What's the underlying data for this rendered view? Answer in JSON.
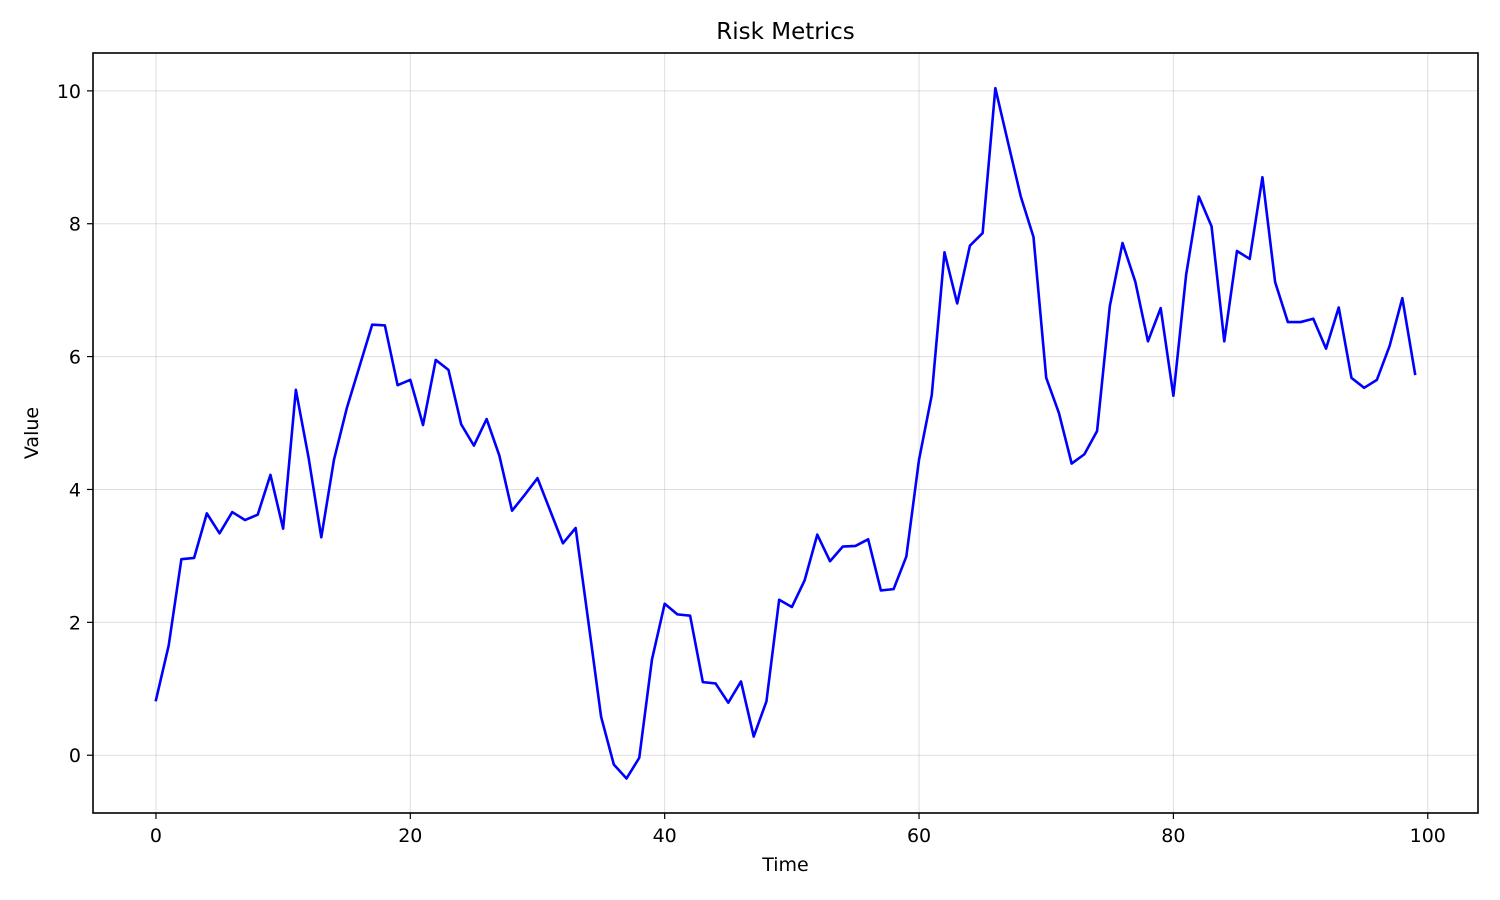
{
  "chart_data": {
    "type": "line",
    "title": "Risk Metrics",
    "xlabel": "Time",
    "ylabel": "Value",
    "xlim": [
      -4.95,
      103.95
    ],
    "ylim": [
      -0.87,
      10.57
    ],
    "xticks": [
      0,
      20,
      40,
      60,
      80,
      100
    ],
    "yticks": [
      0,
      2,
      4,
      6,
      8,
      10
    ],
    "grid": true,
    "legend": "none",
    "line_color": "#0000ff",
    "series": [
      {
        "x": [
          0,
          1,
          2,
          3,
          4,
          5,
          6,
          7,
          8,
          9,
          10,
          11,
          12,
          13,
          14,
          15,
          16,
          17,
          18,
          19,
          20,
          21,
          22,
          23,
          24,
          25,
          26,
          27,
          28,
          29,
          30,
          31,
          32,
          33,
          34,
          35,
          36,
          37,
          38,
          39,
          40,
          41,
          42,
          43,
          44,
          45,
          46,
          47,
          48,
          49,
          50,
          51,
          52,
          53,
          54,
          55,
          56,
          57,
          58,
          59,
          60,
          61,
          62,
          63,
          64,
          65,
          66,
          67,
          68,
          69,
          70,
          71,
          72,
          73,
          74,
          75,
          76,
          77,
          78,
          79,
          80,
          81,
          82,
          83,
          84,
          85,
          86,
          87,
          88,
          89,
          90,
          91,
          92,
          93,
          94,
          95,
          96,
          97,
          98,
          99
        ],
        "y": [
          0.83,
          1.65,
          2.95,
          2.97,
          3.64,
          3.34,
          3.66,
          3.54,
          3.62,
          4.22,
          3.41,
          5.5,
          4.48,
          3.28,
          4.45,
          5.22,
          5.85,
          6.48,
          6.47,
          5.57,
          5.65,
          4.97,
          5.95,
          5.8,
          4.98,
          4.66,
          5.06,
          4.51,
          3.68,
          3.92,
          4.17,
          3.68,
          3.19,
          3.42,
          2.01,
          0.58,
          -0.14,
          -0.35,
          -0.04,
          1.44,
          2.28,
          2.12,
          2.1,
          1.1,
          1.08,
          0.79,
          1.11,
          0.28,
          0.81,
          2.34,
          2.23,
          2.63,
          3.32,
          2.92,
          3.14,
          3.15,
          3.25,
          2.48,
          2.5,
          2.99,
          4.45,
          5.42,
          7.57,
          6.8,
          7.67,
          7.86,
          10.04,
          9.22,
          8.41,
          7.8,
          5.68,
          5.15,
          4.39,
          4.53,
          4.88,
          6.76,
          7.71,
          7.13,
          6.23,
          6.73,
          5.41,
          7.23,
          8.41,
          7.96,
          6.23,
          7.59,
          7.47,
          8.7,
          7.12,
          6.52,
          6.52,
          6.57,
          6.12,
          6.74,
          5.68,
          5.53,
          5.65,
          6.16,
          6.88,
          5.74
        ]
      }
    ]
  }
}
